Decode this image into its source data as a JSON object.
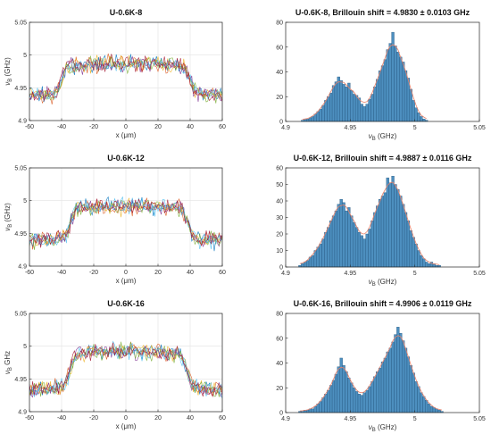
{
  "chart_data": [
    {
      "type": "line",
      "title": "U-0.6K-8",
      "xlabel": "x (μm)",
      "ylabel": "ν_B (GHz)",
      "xlim": [
        -60,
        60
      ],
      "ylim": [
        4.9,
        5.05
      ],
      "xticks": [
        -60,
        -40,
        -20,
        0,
        20,
        40,
        60
      ],
      "yticks": [
        4.9,
        4.95,
        5,
        5.05
      ],
      "grid": true,
      "profile": {
        "edges_um": [
          -40,
          40
        ],
        "outer_ghz": 4.94,
        "inner_ghz": 4.985
      },
      "series_colors": [
        "#0072BD",
        "#D95319",
        "#EDB120",
        "#7E2F8E",
        "#77AC30",
        "#4DBEEE",
        "#A2142F"
      ]
    },
    {
      "type": "bar",
      "title": "U-0.6K-8, Brillouin  shift = 4.9830 ± 0.0103 GHz",
      "xlabel": "ν_B (GHz)",
      "ylabel": "",
      "xlim": [
        4.9,
        5.05
      ],
      "ylim": [
        0,
        80
      ],
      "xticks": [
        4.9,
        4.95,
        5,
        5.05
      ],
      "yticks": [
        0,
        20,
        40,
        60,
        80
      ],
      "bin_width": 0.002,
      "x": [
        4.913,
        4.915,
        4.917,
        4.919,
        4.921,
        4.923,
        4.925,
        4.927,
        4.929,
        4.931,
        4.933,
        4.935,
        4.937,
        4.939,
        4.941,
        4.943,
        4.945,
        4.947,
        4.949,
        4.951,
        4.953,
        4.955,
        4.957,
        4.959,
        4.961,
        4.963,
        4.965,
        4.967,
        4.969,
        4.971,
        4.973,
        4.975,
        4.977,
        4.979,
        4.981,
        4.983,
        4.985,
        4.987,
        4.989,
        4.991,
        4.993,
        4.995,
        4.997,
        4.999,
        5.001,
        5.003,
        5.005,
        5.007,
        5.009
      ],
      "values": [
        1,
        2,
        2,
        3,
        4,
        6,
        8,
        10,
        13,
        17,
        20,
        23,
        29,
        32,
        36,
        33,
        30,
        28,
        31,
        25,
        22,
        21,
        19,
        14,
        12,
        14,
        18,
        22,
        28,
        34,
        41,
        45,
        50,
        58,
        63,
        72,
        61,
        56,
        52,
        48,
        41,
        35,
        26,
        17,
        11,
        7,
        4,
        2,
        1
      ],
      "series_colors": [
        "#4D8FBF"
      ],
      "fit_color": "#E8826A"
    },
    {
      "type": "line",
      "title": "U-0.6K-12",
      "xlabel": "x (μm)",
      "ylabel": "ν_B (GHz)",
      "xlim": [
        -60,
        60
      ],
      "ylim": [
        4.9,
        5.05
      ],
      "xticks": [
        -60,
        -40,
        -20,
        0,
        20,
        40,
        60
      ],
      "yticks": [
        4.9,
        4.95,
        5,
        5.05
      ],
      "grid": true,
      "profile": {
        "edges_um": [
          -35,
          39
        ],
        "outer_ghz": 4.94,
        "inner_ghz": 4.99
      },
      "series_colors": [
        "#0072BD",
        "#D95319",
        "#EDB120",
        "#7E2F8E",
        "#77AC30",
        "#4DBEEE",
        "#A2142F"
      ]
    },
    {
      "type": "bar",
      "title": "U-0.6K-12, Brillouin  shift = 4.9887 ± 0.0116 GHz",
      "xlabel": "ν_B (GHz)",
      "ylabel": "",
      "xlim": [
        4.9,
        5.05
      ],
      "ylim": [
        0,
        60
      ],
      "xticks": [
        4.9,
        4.95,
        5,
        5.05
      ],
      "yticks": [
        0,
        10,
        20,
        30,
        40,
        50,
        60
      ],
      "bin_width": 0.002,
      "x": [
        4.911,
        4.913,
        4.915,
        4.917,
        4.919,
        4.921,
        4.923,
        4.925,
        4.927,
        4.929,
        4.931,
        4.933,
        4.935,
        4.937,
        4.939,
        4.941,
        4.943,
        4.945,
        4.947,
        4.949,
        4.951,
        4.953,
        4.955,
        4.957,
        4.959,
        4.961,
        4.963,
        4.965,
        4.967,
        4.969,
        4.971,
        4.973,
        4.975,
        4.977,
        4.979,
        4.981,
        4.983,
        4.985,
        4.987,
        4.989,
        4.991,
        4.993,
        4.995,
        4.997,
        4.999,
        5.001,
        5.003,
        5.005,
        5.007,
        5.009,
        5.011,
        5.013,
        5.015,
        5.017,
        5.019
      ],
      "values": [
        1,
        2,
        3,
        4,
        6,
        7,
        10,
        12,
        14,
        17,
        21,
        24,
        28,
        31,
        34,
        38,
        41,
        39,
        34,
        36,
        31,
        27,
        24,
        21,
        19,
        17,
        20,
        23,
        28,
        33,
        37,
        41,
        43,
        45,
        54,
        51,
        55,
        50,
        47,
        43,
        38,
        33,
        28,
        22,
        18,
        14,
        10,
        7,
        5,
        3,
        2,
        3,
        2,
        1,
        1
      ],
      "series_colors": [
        "#4D8FBF"
      ],
      "fit_color": "#E8826A"
    },
    {
      "type": "line",
      "title": "U-0.6K-16",
      "xlabel": "x (μm)",
      "ylabel": "ν_B GHz",
      "xlim": [
        -60,
        60
      ],
      "ylim": [
        4.9,
        5.05
      ],
      "xticks": [
        -60,
        -40,
        -20,
        0,
        20,
        40,
        60
      ],
      "yticks": [
        4.9,
        4.95,
        5,
        5.05
      ],
      "grid": true,
      "profile": {
        "edges_um": [
          -35,
          38
        ],
        "outer_ghz": 4.935,
        "inner_ghz": 4.99
      },
      "series_colors": [
        "#0072BD",
        "#D95319",
        "#EDB120",
        "#7E2F8E",
        "#77AC30",
        "#4DBEEE",
        "#A2142F"
      ]
    },
    {
      "type": "bar",
      "title": "U-0.6K-16, Brillouin  shift = 4.9906 ± 0.0119 GHz",
      "xlabel": "ν_B (GHz)",
      "ylabel": "",
      "xlim": [
        4.9,
        5.05
      ],
      "ylim": [
        0,
        80
      ],
      "xticks": [
        4.9,
        4.95,
        5,
        5.05
      ],
      "yticks": [
        0,
        20,
        40,
        60,
        80
      ],
      "bin_width": 0.002,
      "x": [
        4.911,
        4.913,
        4.915,
        4.917,
        4.919,
        4.921,
        4.923,
        4.925,
        4.927,
        4.929,
        4.931,
        4.933,
        4.935,
        4.937,
        4.939,
        4.941,
        4.943,
        4.945,
        4.947,
        4.949,
        4.951,
        4.953,
        4.955,
        4.957,
        4.959,
        4.961,
        4.963,
        4.965,
        4.967,
        4.969,
        4.971,
        4.973,
        4.975,
        4.977,
        4.979,
        4.981,
        4.983,
        4.985,
        4.987,
        4.989,
        4.991,
        4.993,
        4.995,
        4.997,
        4.999,
        5.001,
        5.003,
        5.005,
        5.007,
        5.009,
        5.011,
        5.013,
        5.015,
        5.017,
        5.019,
        5.021
      ],
      "values": [
        1,
        1,
        2,
        2,
        3,
        3,
        5,
        7,
        9,
        12,
        15,
        18,
        22,
        26,
        31,
        37,
        44,
        38,
        33,
        28,
        24,
        20,
        17,
        15,
        14,
        16,
        18,
        21,
        25,
        29,
        33,
        36,
        41,
        44,
        49,
        52,
        57,
        63,
        69,
        64,
        58,
        52,
        45,
        38,
        32,
        25,
        21,
        16,
        13,
        10,
        7,
        5,
        4,
        3,
        2,
        1
      ],
      "series_colors": [
        "#4D8FBF"
      ],
      "fit_color": "#E8826A"
    }
  ]
}
